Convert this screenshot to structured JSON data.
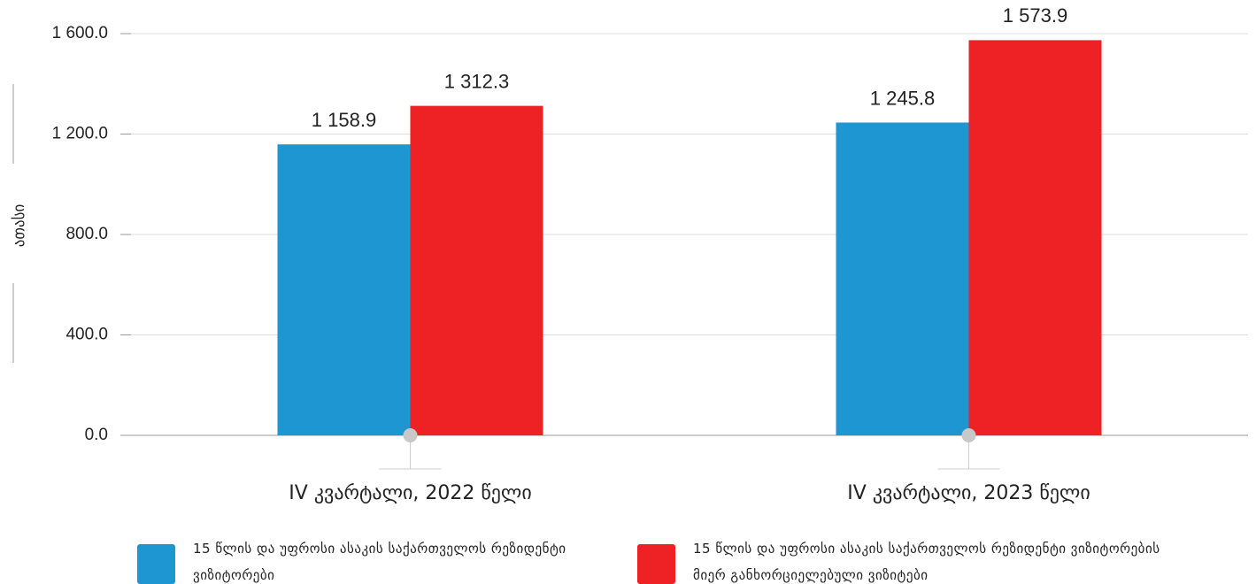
{
  "chart_data": {
    "type": "bar",
    "y_label": "ათასი",
    "categories": [
      "IV კვარტალი, 2022 წელი",
      "IV კვარტალი, 2023 წელი"
    ],
    "series": [
      {
        "name": "15 წლის და უფროსი ასაკის საქართველოს რეზიდენტი ვიზიტორები",
        "color": "#1e96d2",
        "values": [
          1158.9,
          1245.8
        ],
        "value_labels": [
          "1 158.9",
          "1 245.8"
        ]
      },
      {
        "name": "15 წლის და უფროსი ასაკის საქართველოს რეზიდენტი ვიზიტორების მიერ განხორციელებული ვიზიტები",
        "color": "#ee2124",
        "values": [
          1312.3,
          1573.9
        ],
        "value_labels": [
          "1 312.3",
          "1 573.9"
        ]
      }
    ],
    "ylim": [
      0,
      1600
    ],
    "yticks": [
      {
        "value": 0,
        "label": "0.0"
      },
      {
        "value": 400,
        "label": "400.0"
      },
      {
        "value": 800,
        "label": "800.0"
      },
      {
        "value": 1200,
        "label": "1 200.0"
      },
      {
        "value": 1600,
        "label": "1 600.0"
      }
    ],
    "grid": true
  }
}
